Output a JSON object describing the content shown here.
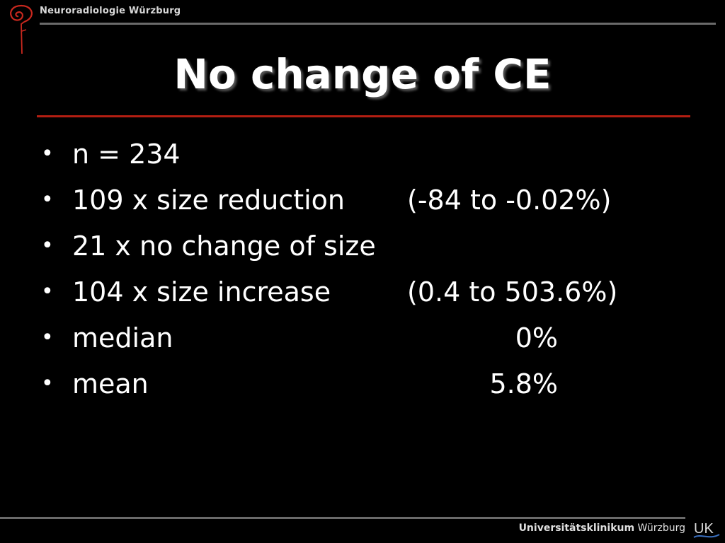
{
  "header": {
    "title": "Neuroradiologie Würzburg"
  },
  "slide": {
    "title": "No change of CE",
    "bullets": [
      {
        "text": "n = 234",
        "range": "",
        "value": ""
      },
      {
        "text": "109 x size reduction",
        "range": "(-84 to -0.02%)",
        "value": ""
      },
      {
        "text": "21 x no change of size",
        "range": "",
        "value": ""
      },
      {
        "text": "104 x size increase",
        "range": "(0.4 to 503.6%)",
        "value": ""
      },
      {
        "text": "median",
        "range": "",
        "value": "0%"
      },
      {
        "text": "mean",
        "range": "",
        "value": "5.8%"
      }
    ]
  },
  "footer": {
    "brand_bold": "Universitätsklinikum",
    "brand_regular": " Würzburg",
    "logo_text": "UK"
  },
  "colors": {
    "accent_rule": "#b41e12",
    "background": "#000000",
    "text": "#ffffff"
  }
}
